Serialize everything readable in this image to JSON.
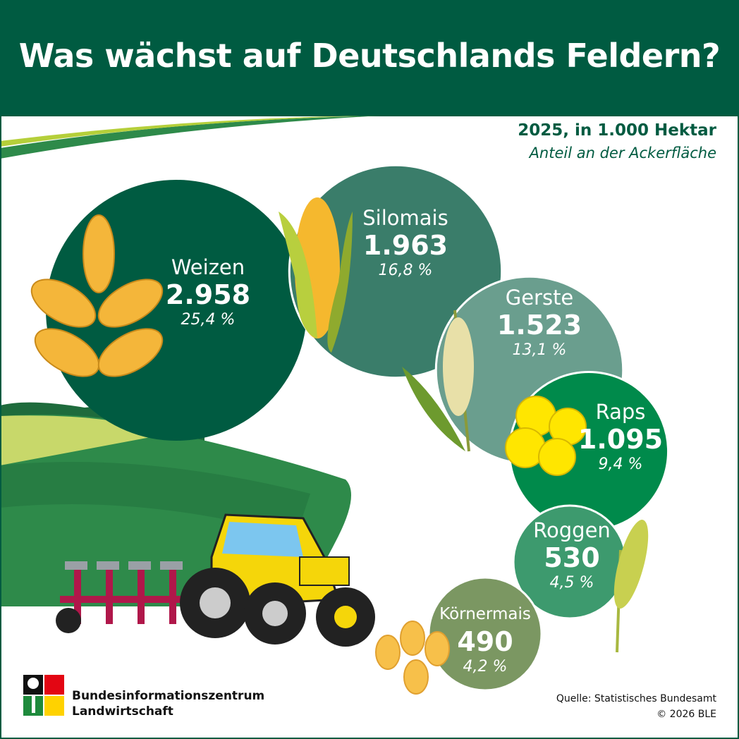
{
  "title": "Was wächst auf Deutschlands Feldern?",
  "subtitle": "2025, in 1.000 Hektar",
  "subtitle2": "Anteil an der Ackerfläche",
  "colors": {
    "brand": "#005b41"
  },
  "chart_data": {
    "type": "bubble",
    "title": "Was wächst auf Deutschlands Feldern?",
    "subtitle": "2025, in 1.000 Hektar",
    "value_unit": "1.000 Hektar",
    "share_label": "Anteil an der Ackerfläche",
    "categories": [
      "Weizen",
      "Silomais",
      "Gerste",
      "Raps",
      "Roggen",
      "Körnermais"
    ],
    "values": [
      2958,
      1963,
      1523,
      1095,
      530,
      490
    ],
    "value_labels": [
      "2.958",
      "1.963",
      "1.523",
      "1.095",
      "530",
      "490"
    ],
    "shares": [
      "25,4 %",
      "16,8 %",
      "13,1 %",
      "9,4 %",
      "4,5 %",
      "4,2 %"
    ],
    "colors": [
      "#005b41",
      "#3a7d6a",
      "#6a9e8e",
      "#008a4b",
      "#3d9a6e",
      "#7b9762"
    ],
    "icons": [
      "wheat-icon",
      "corn-icon",
      "barley-icon",
      "rapeseed-flower-icon",
      "rye-icon",
      "corn-kernels-icon"
    ]
  },
  "footer": {
    "logo_line1": "Bundesinformationszentrum",
    "logo_line2": "Landwirtschaft",
    "source": "Quelle: Statistisches Bundesamt",
    "copyright": "© 2026 BLE"
  }
}
